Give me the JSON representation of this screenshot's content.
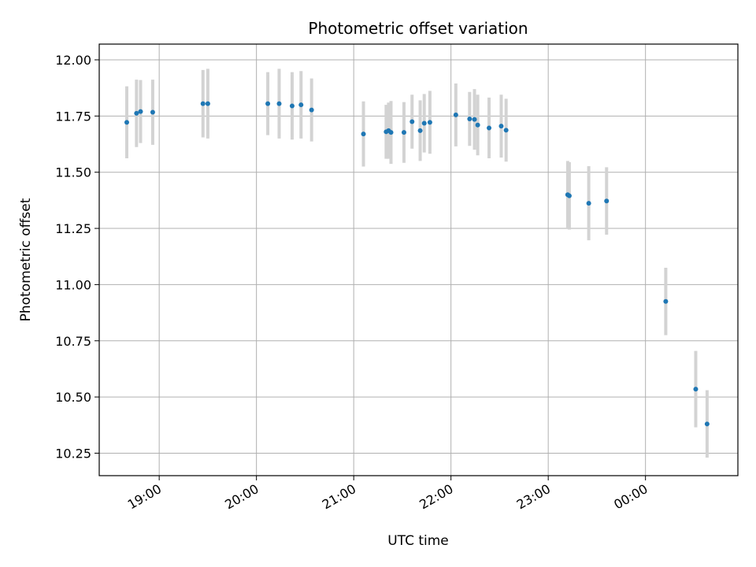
{
  "chart_data": {
    "type": "scatter",
    "title": "Photometric offset variation",
    "xlabel": "UTC time",
    "ylabel": "Photometric offset",
    "xlim": [
      "2024-01-01T18:23",
      "2024-01-02T00:57"
    ],
    "ylim": [
      10.15,
      12.07
    ],
    "x_ticks": [
      {
        "t": "2024-01-01T19:00",
        "label": "19:00"
      },
      {
        "t": "2024-01-01T20:00",
        "label": "20:00"
      },
      {
        "t": "2024-01-01T21:00",
        "label": "21:00"
      },
      {
        "t": "2024-01-01T22:00",
        "label": "22:00"
      },
      {
        "t": "2024-01-01T23:00",
        "label": "23:00"
      },
      {
        "t": "2024-01-02T00:00",
        "label": "00:00"
      }
    ],
    "y_ticks": [
      "12.00",
      "11.75",
      "11.50",
      "11.25",
      "11.00",
      "10.75",
      "10.50",
      "10.25"
    ],
    "grid": true,
    "point_color": "#1f77b4",
    "errorbar_color": "#d3d3d3",
    "points": [
      {
        "t": "2024-01-01T18:40:00",
        "y": 11.722,
        "err": 0.16
      },
      {
        "t": "2024-01-01T18:46:00",
        "y": 11.762,
        "err": 0.15
      },
      {
        "t": "2024-01-01T18:48:30",
        "y": 11.77,
        "err": 0.14
      },
      {
        "t": "2024-01-01T18:56:00",
        "y": 11.767,
        "err": 0.145
      },
      {
        "t": "2024-01-01T19:27:00",
        "y": 11.805,
        "err": 0.15
      },
      {
        "t": "2024-01-01T19:30:00",
        "y": 11.805,
        "err": 0.155
      },
      {
        "t": "2024-01-01T20:07:00",
        "y": 11.805,
        "err": 0.14
      },
      {
        "t": "2024-01-01T20:14:00",
        "y": 11.805,
        "err": 0.155
      },
      {
        "t": "2024-01-01T20:22:00",
        "y": 11.795,
        "err": 0.15
      },
      {
        "t": "2024-01-01T20:27:30",
        "y": 11.8,
        "err": 0.15
      },
      {
        "t": "2024-01-01T20:34:00",
        "y": 11.777,
        "err": 0.14
      },
      {
        "t": "2024-01-01T21:06:00",
        "y": 11.67,
        "err": 0.145
      },
      {
        "t": "2024-01-01T21:20:00",
        "y": 11.68,
        "err": 0.12
      },
      {
        "t": "2024-01-01T21:21:30",
        "y": 11.685,
        "err": 0.125
      },
      {
        "t": "2024-01-01T21:23:00",
        "y": 11.677,
        "err": 0.14
      },
      {
        "t": "2024-01-01T21:31:00",
        "y": 11.677,
        "err": 0.135
      },
      {
        "t": "2024-01-01T21:36:00",
        "y": 11.725,
        "err": 0.12
      },
      {
        "t": "2024-01-01T21:41:00",
        "y": 11.685,
        "err": 0.135
      },
      {
        "t": "2024-01-01T21:43:30",
        "y": 11.718,
        "err": 0.13
      },
      {
        "t": "2024-01-01T21:47:00",
        "y": 11.722,
        "err": 0.14
      },
      {
        "t": "2024-01-01T22:03:00",
        "y": 11.755,
        "err": 0.14
      },
      {
        "t": "2024-01-01T22:11:30",
        "y": 11.737,
        "err": 0.12
      },
      {
        "t": "2024-01-01T22:14:30",
        "y": 11.735,
        "err": 0.135
      },
      {
        "t": "2024-01-01T22:16:30",
        "y": 11.71,
        "err": 0.135
      },
      {
        "t": "2024-01-01T22:23:30",
        "y": 11.697,
        "err": 0.135
      },
      {
        "t": "2024-01-01T22:31:00",
        "y": 11.705,
        "err": 0.14
      },
      {
        "t": "2024-01-01T22:34:00",
        "y": 11.687,
        "err": 0.14
      },
      {
        "t": "2024-01-01T23:12:00",
        "y": 11.4,
        "err": 0.15
      },
      {
        "t": "2024-01-01T23:13:00",
        "y": 11.395,
        "err": 0.15
      },
      {
        "t": "2024-01-01T23:25:00",
        "y": 11.362,
        "err": 0.165
      },
      {
        "t": "2024-01-01T23:36:00",
        "y": 11.372,
        "err": 0.15
      },
      {
        "t": "2024-01-02T00:12:30",
        "y": 10.925,
        "err": 0.15
      },
      {
        "t": "2024-01-02T00:31:00",
        "y": 10.535,
        "err": 0.17
      },
      {
        "t": "2024-01-02T00:38:00",
        "y": 10.38,
        "err": 0.15
      }
    ]
  }
}
